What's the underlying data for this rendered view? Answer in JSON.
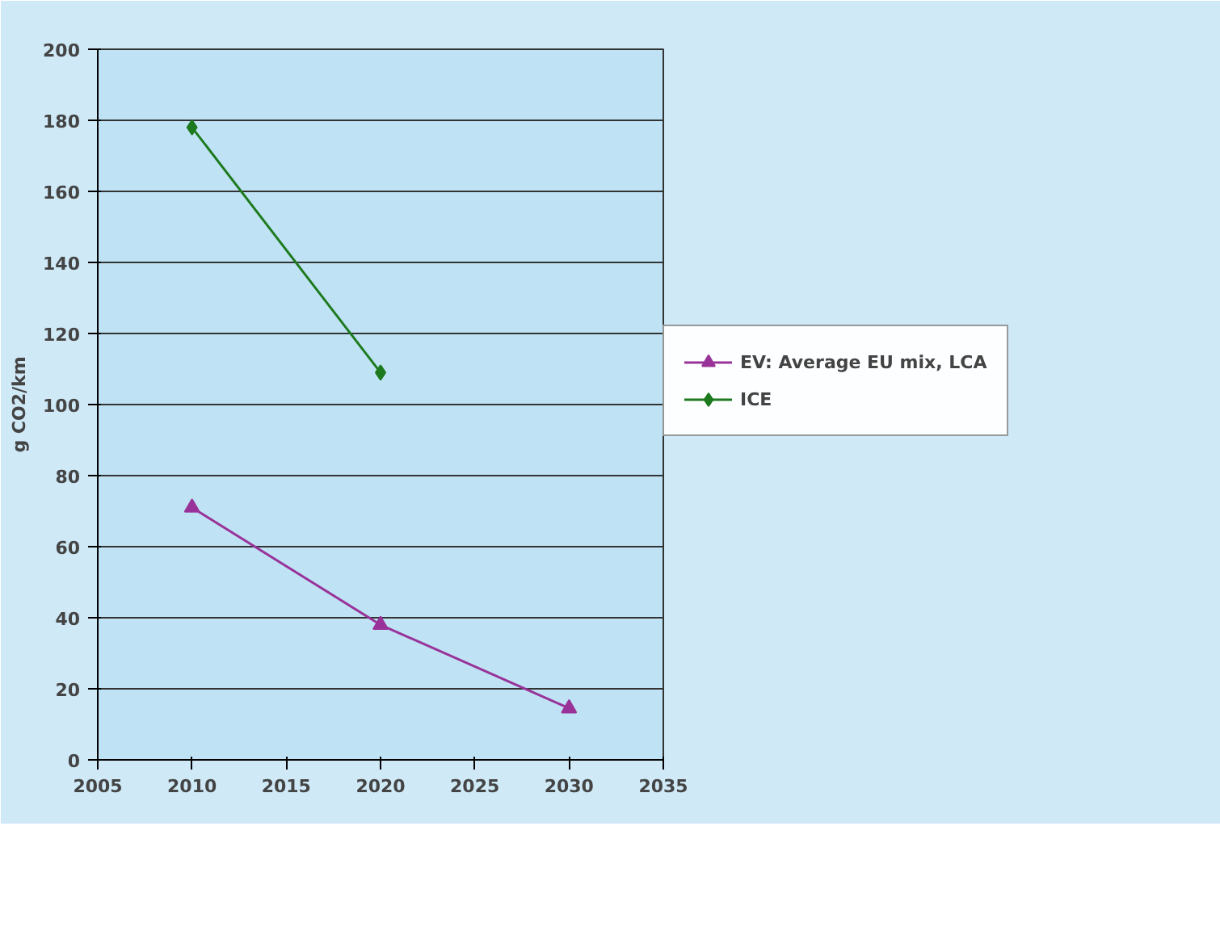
{
  "chart_data": {
    "type": "line",
    "ylabel": "g CO2/km",
    "xlim": [
      2005,
      2035
    ],
    "xticks": [
      2005,
      2010,
      2015,
      2020,
      2025,
      2030,
      2035
    ],
    "ylim": [
      0,
      200
    ],
    "yticks": [
      0,
      20,
      40,
      60,
      80,
      100,
      120,
      140,
      160,
      180,
      200
    ],
    "grid": "y",
    "legend": "right",
    "line_style": "solid",
    "series": [
      {
        "name": "EV: Average EU mix, LCA",
        "color": "#993399",
        "marker": "triangle",
        "x": [
          2010,
          2020,
          2030
        ],
        "values": [
          71,
          38,
          14.5
        ]
      },
      {
        "name": "ICE",
        "color": "#1e7a1e",
        "marker": "diamond",
        "x": [
          2010,
          2020
        ],
        "values": [
          178,
          109
        ]
      }
    ]
  }
}
